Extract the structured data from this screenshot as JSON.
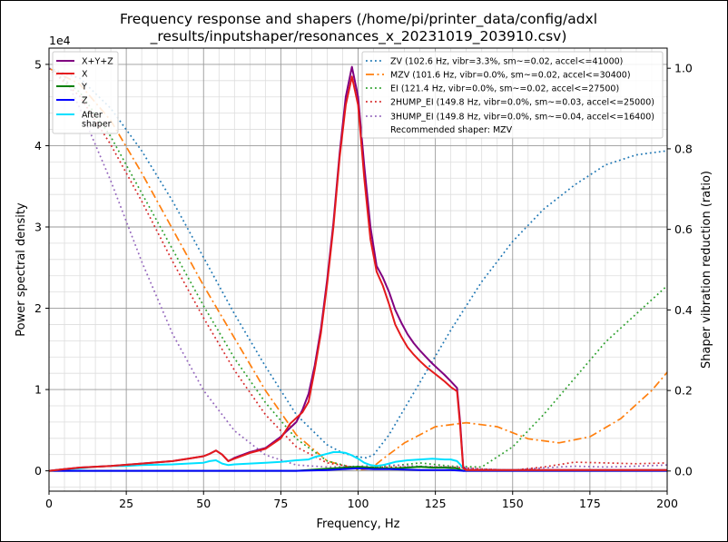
{
  "chart_data": {
    "type": "line",
    "title_lines": [
      "Frequency response and shapers (/home/pi/printer_data/config/adxl",
      "_results/inputshaper/resonances_x_20231019_203910.csv)"
    ],
    "xlabel": "Frequency, Hz",
    "ylabel": "Power spectral density",
    "y2label": "Shaper vibration reduction (ratio)",
    "y_offset_label": "1e4",
    "xlim": [
      0,
      200
    ],
    "ylim": [
      -0.25,
      5.2
    ],
    "y2lim": [
      -0.05,
      1.05
    ],
    "x_ticks": [
      "0",
      "25",
      "50",
      "75",
      "100",
      "125",
      "150",
      "175",
      "200"
    ],
    "y_ticks": [
      "0",
      "1",
      "2",
      "3",
      "4",
      "5"
    ],
    "y2_ticks": [
      "0.0",
      "0.2",
      "0.4",
      "0.6",
      "0.8",
      "1.0"
    ],
    "grid": true,
    "legend_left_placement": "top-left",
    "legend_right_placement": "top-right",
    "psd_series": [
      {
        "name": "X+Y+Z",
        "color": "#800080",
        "x": [
          0,
          5,
          10,
          20,
          30,
          40,
          45,
          50,
          52,
          54,
          56,
          58,
          60,
          65,
          70,
          75,
          80,
          82,
          84,
          86,
          88,
          90,
          92,
          94,
          96,
          98,
          100,
          102,
          104,
          106,
          108,
          110,
          112,
          114,
          116,
          118,
          120,
          122,
          124,
          126,
          128,
          130,
          132,
          133,
          134,
          135,
          140,
          150,
          160,
          170,
          180,
          190,
          200
        ],
        "y": [
          0,
          0.02,
          0.04,
          0.06,
          0.09,
          0.12,
          0.15,
          0.18,
          0.21,
          0.25,
          0.2,
          0.12,
          0.16,
          0.23,
          0.28,
          0.42,
          0.6,
          0.75,
          0.95,
          1.3,
          1.75,
          2.35,
          3.05,
          3.9,
          4.6,
          4.97,
          4.6,
          3.75,
          3.0,
          2.52,
          2.38,
          2.2,
          1.98,
          1.82,
          1.68,
          1.57,
          1.48,
          1.4,
          1.32,
          1.25,
          1.18,
          1.1,
          1.02,
          0.6,
          0.05,
          0.01,
          0.01,
          0.01,
          0.01,
          0.01,
          0.01,
          0.01,
          0.01
        ]
      },
      {
        "name": "X",
        "color": "#e41a1c",
        "x": [
          0,
          5,
          10,
          20,
          30,
          40,
          45,
          50,
          52,
          54,
          56,
          58,
          60,
          65,
          70,
          75,
          78,
          82,
          84,
          86,
          88,
          90,
          92,
          94,
          96,
          98,
          100,
          102,
          104,
          106,
          108,
          110,
          112,
          114,
          116,
          118,
          120,
          122,
          124,
          126,
          128,
          130,
          132,
          133,
          134,
          135,
          140,
          150,
          160,
          170,
          180,
          190,
          200
        ],
        "y": [
          0,
          0.02,
          0.04,
          0.06,
          0.09,
          0.12,
          0.15,
          0.18,
          0.21,
          0.25,
          0.2,
          0.12,
          0.15,
          0.22,
          0.27,
          0.4,
          0.58,
          0.72,
          0.85,
          1.25,
          1.7,
          2.3,
          3.0,
          3.85,
          4.5,
          4.85,
          4.5,
          3.6,
          2.85,
          2.45,
          2.28,
          2.05,
          1.8,
          1.65,
          1.52,
          1.43,
          1.35,
          1.28,
          1.22,
          1.16,
          1.1,
          1.03,
          0.98,
          0.55,
          0.03,
          0.01,
          0.01,
          0.01,
          0.01,
          0.01,
          0.01,
          0.01,
          0.01
        ]
      },
      {
        "name": "Y",
        "color": "#008000",
        "x": [
          0,
          60,
          80,
          88,
          92,
          96,
          100,
          104,
          108,
          112,
          116,
          120,
          124,
          128,
          132,
          134,
          140,
          160,
          180,
          200
        ],
        "y": [
          0,
          0,
          0,
          0.02,
          0.03,
          0.04,
          0.05,
          0.04,
          0.03,
          0.03,
          0.04,
          0.05,
          0.04,
          0.04,
          0.03,
          0,
          0,
          0,
          0,
          0
        ]
      },
      {
        "name": "Z",
        "color": "#0000ff",
        "x": [
          0,
          80,
          90,
          95,
          100,
          105,
          110,
          120,
          130,
          134,
          140,
          200
        ],
        "y": [
          0,
          0,
          0.01,
          0.02,
          0.03,
          0.02,
          0.02,
          0.01,
          0.01,
          0,
          0,
          0
        ]
      },
      {
        "name": "After\nshaper",
        "color": "#00e0ff",
        "x": [
          0,
          5,
          10,
          15,
          20,
          25,
          30,
          40,
          45,
          50,
          52,
          54,
          56,
          58,
          60,
          65,
          70,
          75,
          80,
          84,
          86,
          88,
          90,
          92,
          94,
          96,
          98,
          100,
          102,
          104,
          106,
          108,
          110,
          112,
          116,
          120,
          124,
          128,
          130,
          132,
          133,
          134,
          135,
          140,
          150,
          160,
          170,
          180,
          190,
          200
        ],
        "y": [
          0,
          0.02,
          0.03,
          0.05,
          0.06,
          0.06,
          0.07,
          0.08,
          0.09,
          0.1,
          0.12,
          0.13,
          0.09,
          0.07,
          0.08,
          0.09,
          0.1,
          0.11,
          0.13,
          0.14,
          0.17,
          0.19,
          0.21,
          0.23,
          0.23,
          0.22,
          0.19,
          0.15,
          0.1,
          0.07,
          0.06,
          0.07,
          0.09,
          0.11,
          0.13,
          0.14,
          0.15,
          0.14,
          0.14,
          0.12,
          0.08,
          0.03,
          0.01,
          0.01,
          0.01,
          0.01,
          0.01,
          0.01,
          0.01,
          0.01
        ]
      }
    ],
    "shaper_series": [
      {
        "name": "ZV (102.6 Hz, vibr=3.3%, sm~=0.02, accel<=41000)",
        "color": "#1f77b4",
        "style": "dotted",
        "x": [
          0,
          10,
          20,
          30,
          40,
          50,
          60,
          70,
          80,
          90,
          95,
          100,
          102.6,
          105,
          110,
          120,
          130,
          140,
          150,
          160,
          170,
          180,
          190,
          195,
          200
        ],
        "y": [
          1.0,
          0.975,
          0.9,
          0.795,
          0.67,
          0.53,
          0.39,
          0.26,
          0.14,
          0.065,
          0.045,
          0.035,
          0.033,
          0.04,
          0.09,
          0.22,
          0.35,
          0.47,
          0.57,
          0.65,
          0.71,
          0.76,
          0.785,
          0.79,
          0.795
        ]
      },
      {
        "name": "MZV (101.6 Hz, vibr=0.0%, sm~=0.02, accel<=30400)",
        "color": "#ff7f0e",
        "style": "dashdot",
        "x": [
          0,
          10,
          20,
          30,
          40,
          50,
          60,
          70,
          80,
          90,
          100,
          104,
          108,
          115,
          125,
          135,
          145,
          155,
          165,
          175,
          185,
          195,
          200
        ],
        "y": [
          1.0,
          0.96,
          0.87,
          0.74,
          0.6,
          0.46,
          0.33,
          0.2,
          0.09,
          0.025,
          0.003,
          0.005,
          0.03,
          0.07,
          0.11,
          0.12,
          0.11,
          0.08,
          0.07,
          0.085,
          0.13,
          0.2,
          0.245
        ]
      },
      {
        "name": "EI (121.4 Hz, vibr=0.0%, sm~=0.02, accel<=27500)",
        "color": "#2ca02c",
        "style": "dotted",
        "x": [
          0,
          10,
          20,
          30,
          40,
          50,
          60,
          70,
          80,
          90,
          100,
          110,
          120,
          130,
          140,
          150,
          160,
          170,
          180,
          190,
          200
        ],
        "y": [
          1.0,
          0.94,
          0.83,
          0.69,
          0.55,
          0.41,
          0.28,
          0.17,
          0.08,
          0.025,
          0.005,
          0.012,
          0.02,
          0.012,
          0.01,
          0.06,
          0.14,
          0.23,
          0.32,
          0.39,
          0.46
        ]
      },
      {
        "name": "2HUMP_EI (149.8 Hz, vibr=0.0%, sm~=0.03, accel<=25000)",
        "color": "#d62728",
        "style": "dotted",
        "x": [
          0,
          10,
          20,
          30,
          40,
          50,
          60,
          70,
          80,
          90,
          100,
          110,
          120,
          130,
          140,
          150,
          160,
          170,
          180,
          190,
          200
        ],
        "y": [
          1.0,
          0.93,
          0.81,
          0.67,
          0.52,
          0.38,
          0.25,
          0.14,
          0.06,
          0.02,
          0.008,
          0.01,
          0.01,
          0.01,
          0.005,
          0.002,
          0.01,
          0.022,
          0.02,
          0.018,
          0.02
        ]
      },
      {
        "name": "3HUMP_EI (149.8 Hz, vibr=0.0%, sm~=0.04, accel<=16400)",
        "color": "#9467bd",
        "style": "dotted",
        "x": [
          0,
          5,
          10,
          20,
          30,
          40,
          50,
          60,
          70,
          80,
          90,
          100,
          110,
          120,
          130,
          140,
          150,
          160,
          170,
          180,
          190,
          200
        ],
        "y": [
          1.0,
          0.98,
          0.9,
          0.72,
          0.52,
          0.34,
          0.2,
          0.1,
          0.04,
          0.015,
          0.01,
          0.012,
          0.015,
          0.012,
          0.01,
          0.005,
          0.002,
          0.008,
          0.012,
          0.01,
          0.012,
          0.015
        ]
      }
    ],
    "recommended_text": "Recommended shaper: MZV"
  }
}
